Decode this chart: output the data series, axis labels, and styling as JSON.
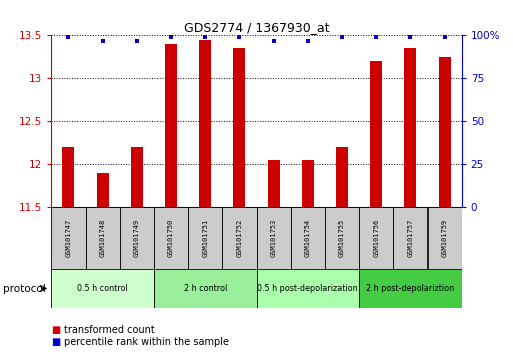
{
  "title": "GDS2774 / 1367930_at",
  "samples": [
    "GSM101747",
    "GSM101748",
    "GSM101749",
    "GSM101750",
    "GSM101751",
    "GSM101752",
    "GSM101753",
    "GSM101754",
    "GSM101755",
    "GSM101756",
    "GSM101757",
    "GSM101759"
  ],
  "bar_values": [
    12.2,
    11.9,
    12.2,
    13.4,
    13.45,
    13.35,
    12.05,
    12.05,
    12.2,
    13.2,
    13.35,
    13.25
  ],
  "percentile_values": [
    99,
    97,
    97,
    99,
    99,
    99,
    97,
    97,
    99,
    99,
    99,
    99
  ],
  "ylim_left": [
    11.5,
    13.5
  ],
  "ylim_right": [
    0,
    100
  ],
  "yticks_left": [
    11.5,
    12.0,
    12.5,
    13.0,
    13.5
  ],
  "yticks_right": [
    0,
    25,
    50,
    75,
    100
  ],
  "ytick_labels_left": [
    "11.5",
    "12",
    "12.5",
    "13",
    "13.5"
  ],
  "ytick_labels_right": [
    "0",
    "25",
    "50",
    "75",
    "100%"
  ],
  "bar_color": "#cc0000",
  "percentile_color": "#0000cc",
  "protocol_groups": [
    {
      "label": "0.5 h control",
      "start": 0,
      "end": 3,
      "color": "#ccffcc"
    },
    {
      "label": "2 h control",
      "start": 3,
      "end": 6,
      "color": "#99ee99"
    },
    {
      "label": "0.5 h post-depolarization",
      "start": 6,
      "end": 9,
      "color": "#aaffaa"
    },
    {
      "label": "2 h post-depolariztion",
      "start": 9,
      "end": 12,
      "color": "#44cc44"
    }
  ],
  "legend_bar_label": "transformed count",
  "legend_pct_label": "percentile rank within the sample",
  "protocol_label": "protocol",
  "bar_width": 0.35,
  "sample_box_color": "#cccccc",
  "xlim": [
    -0.5,
    11.5
  ]
}
